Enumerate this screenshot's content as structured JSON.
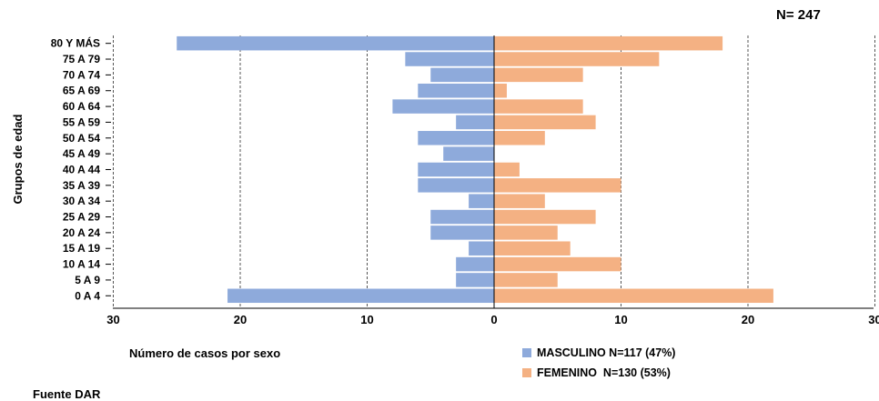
{
  "chart_data": {
    "type": "bar",
    "orientation": "horizontal-population-pyramid",
    "n_label": "N= 247",
    "ylabel": "Grupos de edad",
    "xlabel": "Número de casos por sexo",
    "source": "Fuente DAR",
    "xlim": [
      -30,
      30
    ],
    "x_ticks": [
      "30",
      "20",
      "10",
      "0",
      "10",
      "20",
      "30"
    ],
    "grid": "vertical dashed",
    "legend_position": "bottom-right",
    "categories": [
      "80 Y MÁS",
      "75 A 79",
      "70 A 74",
      "65 A 69",
      "60 A 64",
      "55 A 59",
      "50 A 54",
      "45 A 49",
      "40 A 44",
      "35 A 39",
      "30 A 34",
      "25 A 29",
      "20 A 24",
      "15 A 19",
      "10 A 14",
      "5 A 9",
      "0 A 4"
    ],
    "series": [
      {
        "name": "MASCULINO N=117 (47%)",
        "color": "#8eaadb",
        "values": [
          25,
          7,
          5,
          6,
          8,
          3,
          6,
          4,
          6,
          6,
          2,
          5,
          5,
          2,
          3,
          3,
          21
        ]
      },
      {
        "name": "FEMENINO  N=130 (53%)",
        "color": "#f4b183",
        "values": [
          18,
          13,
          7,
          1,
          7,
          8,
          4,
          0,
          2,
          10,
          4,
          8,
          5,
          6,
          10,
          5,
          22
        ]
      }
    ]
  }
}
